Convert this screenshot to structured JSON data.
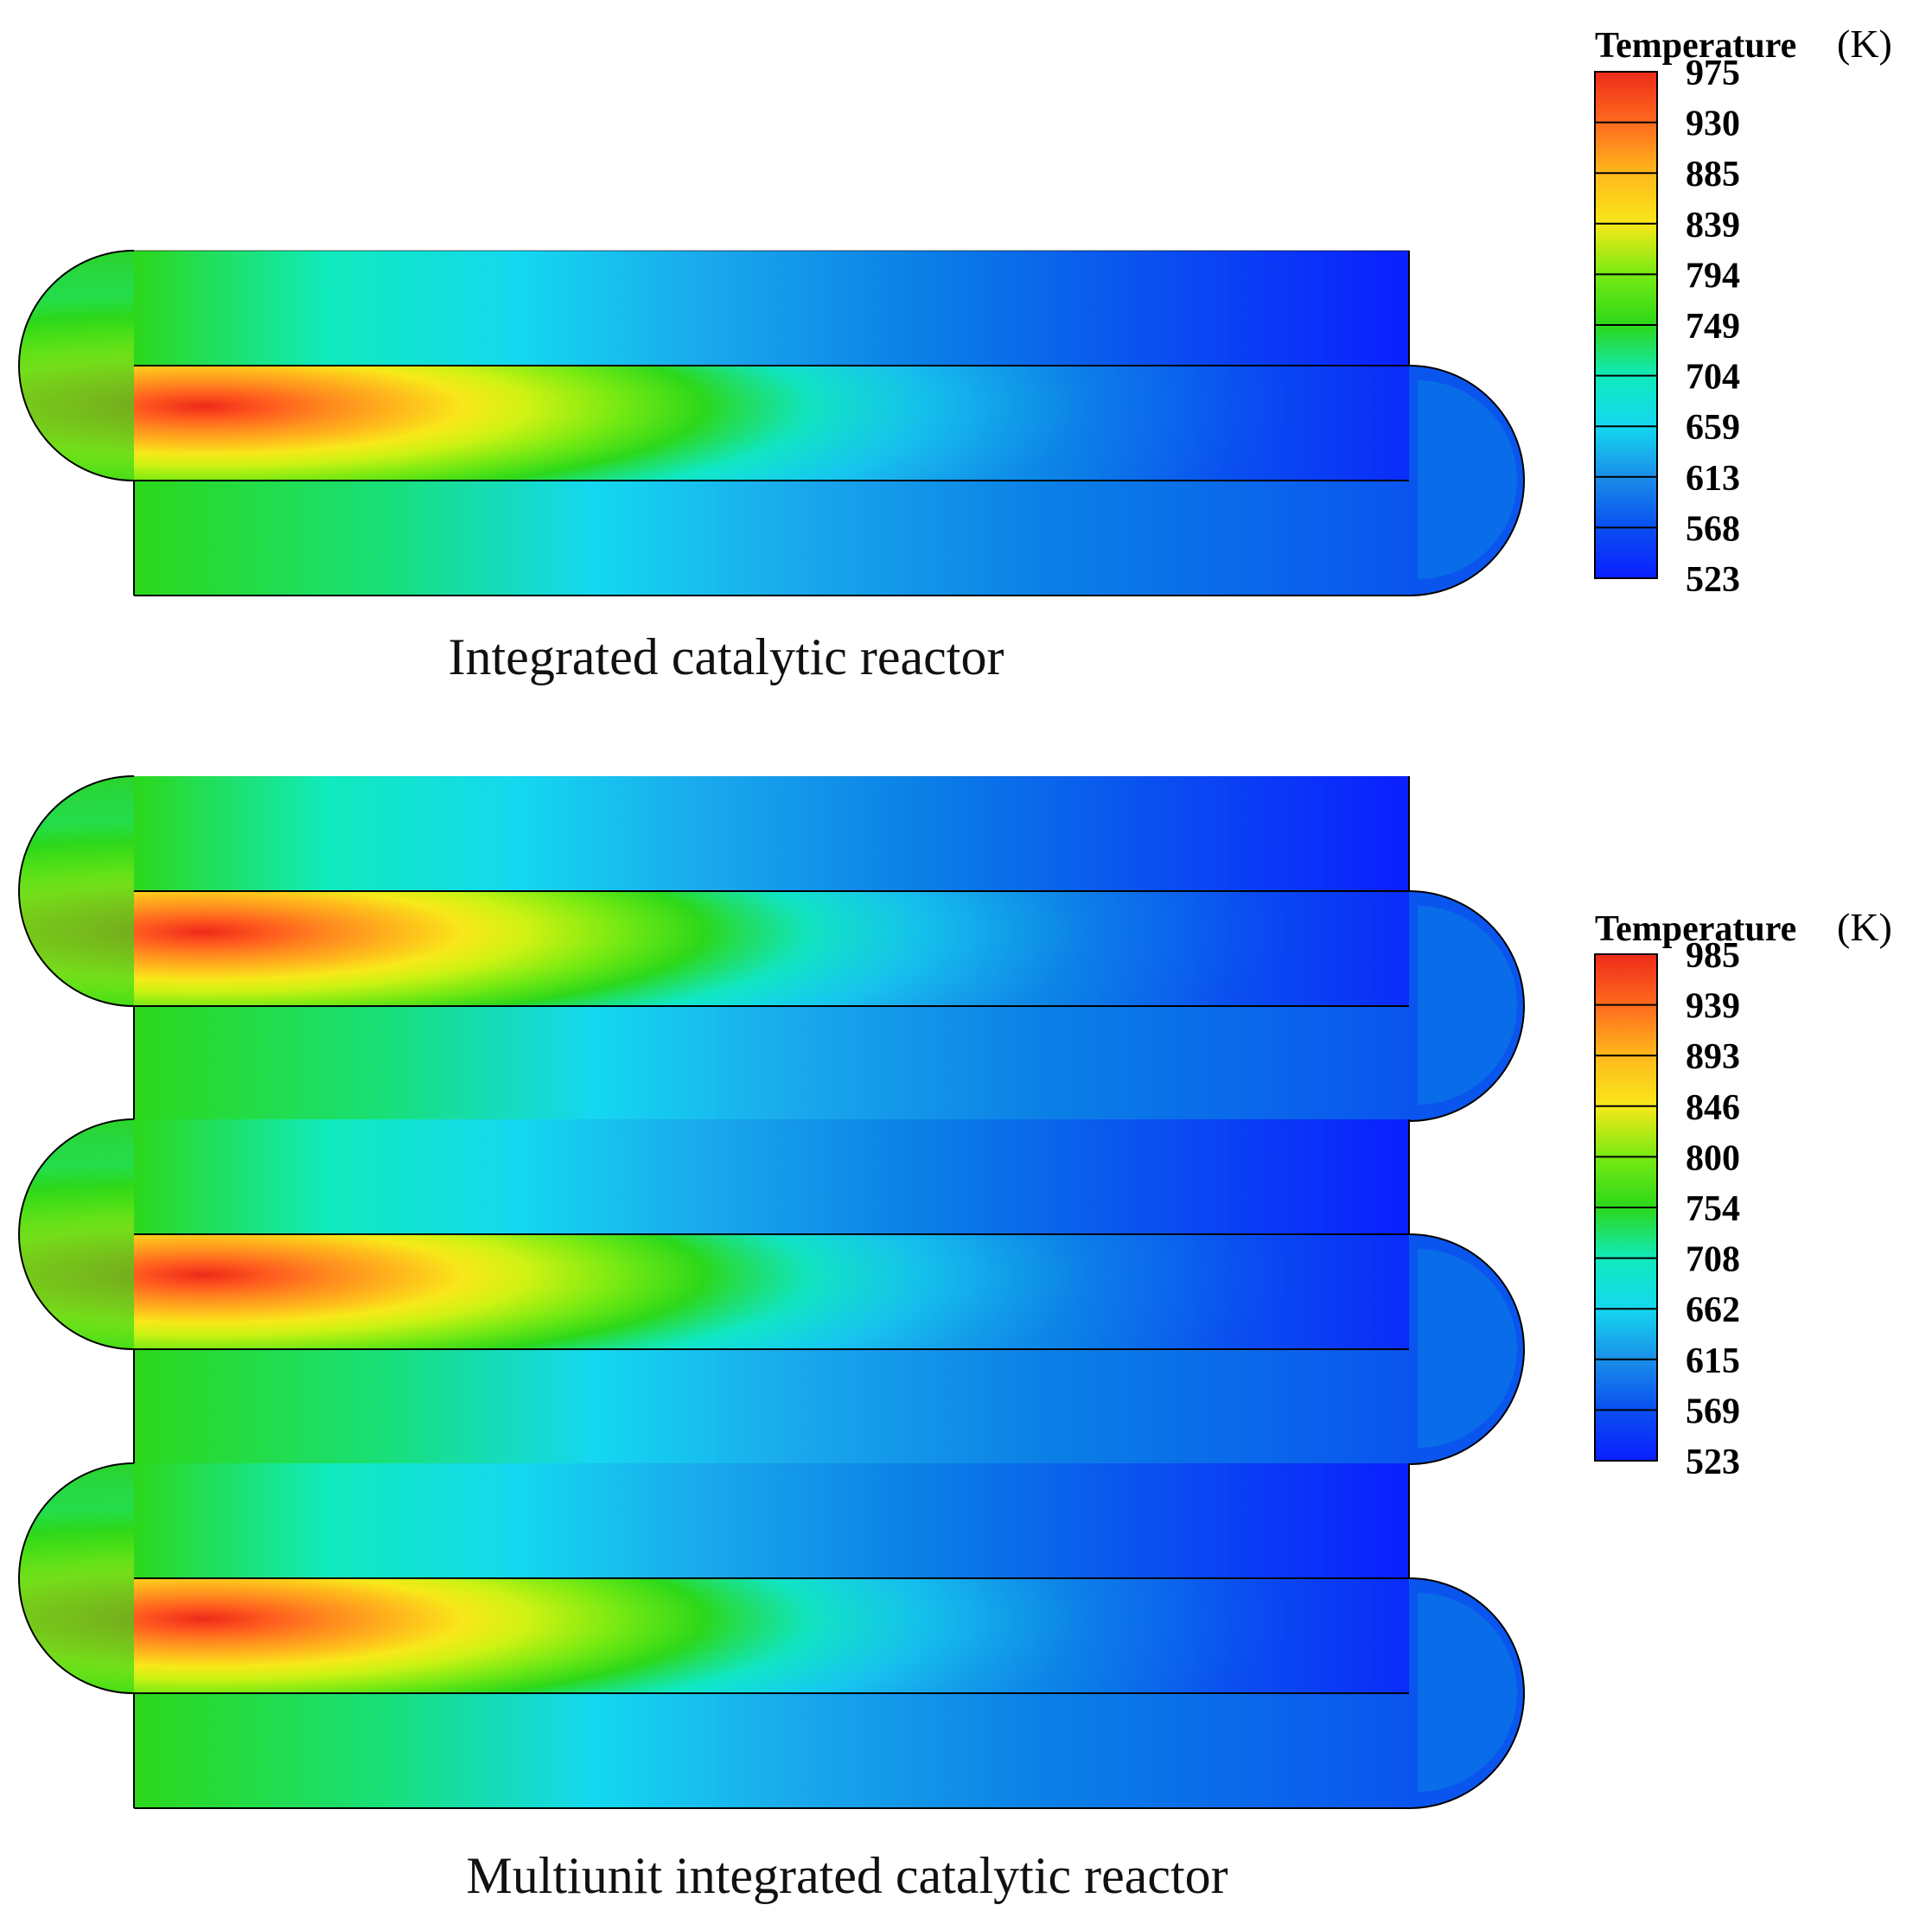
{
  "figure": {
    "top_caption": "Integrated catalytic reactor",
    "bottom_caption": "Multiunit integrated catalytic reactor"
  },
  "legend_top": {
    "title": "Temperature",
    "unit": "(K)",
    "ticks": [
      "975",
      "930",
      "885",
      "839",
      "794",
      "749",
      "704",
      "659",
      "613",
      "568",
      "523"
    ]
  },
  "legend_bottom": {
    "title": "Temperature",
    "unit": "(K)",
    "ticks": [
      "985",
      "939",
      "893",
      "846",
      "800",
      "754",
      "708",
      "662",
      "615",
      "569",
      "523"
    ]
  },
  "colormap": [
    "#0a1fff",
    "#0a4ff0",
    "#0a7fe6",
    "#1aa8ec",
    "#14d8f0",
    "#10eabb",
    "#12dd62",
    "#2cd81a",
    "#78ea12",
    "#cdf213",
    "#f8e81a",
    "#ffb81c",
    "#ff8c1e",
    "#ff5a1e",
    "#ee2a1a"
  ]
}
